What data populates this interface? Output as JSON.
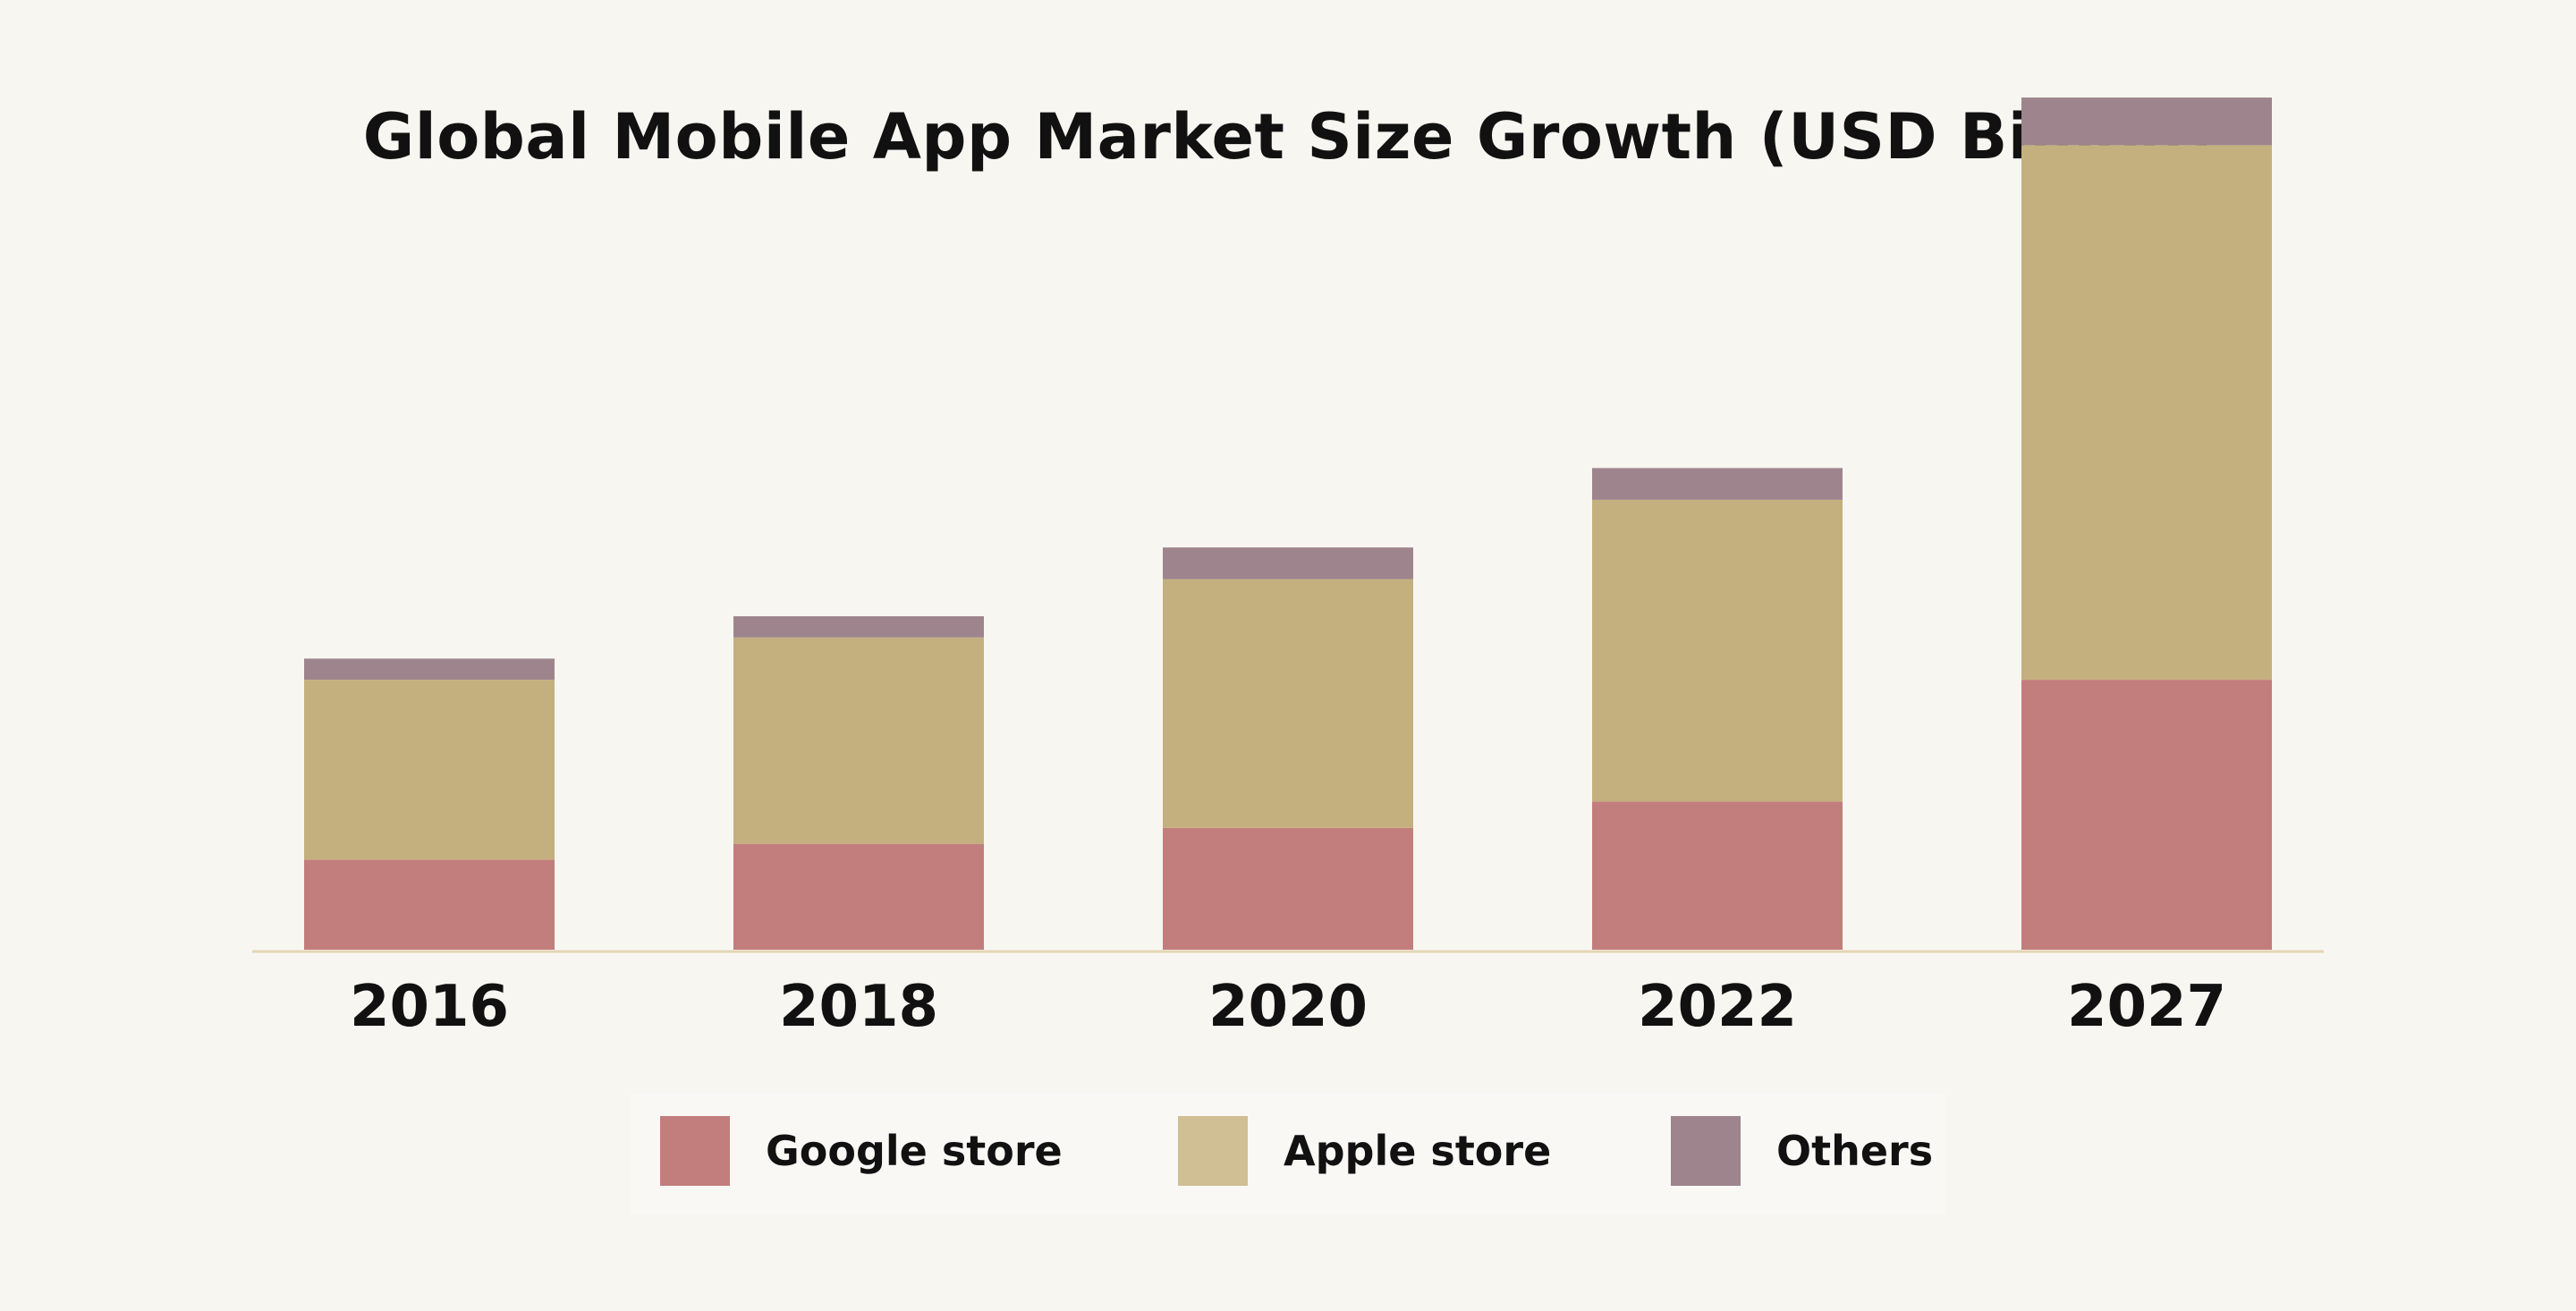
{
  "chart_data": {
    "type": "bar",
    "stacked": true,
    "title": "Global Mobile App Market Size Growth (USD Billion)",
    "xlabel": "",
    "ylabel": "",
    "categories": [
      "2016",
      "2018",
      "2020",
      "2022",
      "2027"
    ],
    "series": [
      {
        "name": "Google store",
        "values": [
          8.5,
          10.0,
          11.5,
          14.0,
          25.5
        ],
        "color": "#c27d7d"
      },
      {
        "name": "Apple store",
        "values": [
          17.0,
          19.5,
          23.5,
          28.5,
          50.5
        ],
        "color": "#c4b07e"
      },
      {
        "name": "Others",
        "values": [
          2.0,
          2.0,
          3.0,
          3.0,
          4.5
        ],
        "color": "#9d848d"
      }
    ],
    "ylim": [
      0,
      80
    ],
    "grid": false,
    "legend": "bottom"
  }
}
